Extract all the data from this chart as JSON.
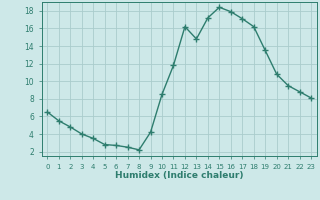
{
  "x": [
    0,
    1,
    2,
    3,
    4,
    5,
    6,
    7,
    8,
    9,
    10,
    11,
    12,
    13,
    14,
    15,
    16,
    17,
    18,
    19,
    20,
    21,
    22,
    23
  ],
  "y": [
    6.5,
    5.5,
    4.8,
    4.0,
    3.5,
    2.8,
    2.7,
    2.5,
    2.2,
    4.2,
    8.5,
    11.8,
    16.2,
    14.8,
    17.2,
    18.4,
    17.9,
    17.1,
    16.2,
    13.5,
    10.8,
    9.5,
    8.8,
    8.1
  ],
  "line_color": "#2e7d6e",
  "marker": "+",
  "marker_size": 4,
  "marker_lw": 1.0,
  "line_width": 1.0,
  "bg_color": "#cde8e8",
  "grid_color": "#aacccc",
  "xlabel": "Humidex (Indice chaleur)",
  "xlim": [
    -0.5,
    23.5
  ],
  "ylim": [
    1.5,
    19.0
  ],
  "yticks": [
    2,
    4,
    6,
    8,
    10,
    12,
    14,
    16,
    18
  ],
  "xticks": [
    0,
    1,
    2,
    3,
    4,
    5,
    6,
    7,
    8,
    9,
    10,
    11,
    12,
    13,
    14,
    15,
    16,
    17,
    18,
    19,
    20,
    21,
    22,
    23
  ],
  "tick_color": "#2e7d6e",
  "label_color": "#2e7d6e",
  "xlabel_fontsize": 6.5,
  "tick_fontsize_x": 5.0,
  "tick_fontsize_y": 5.5
}
